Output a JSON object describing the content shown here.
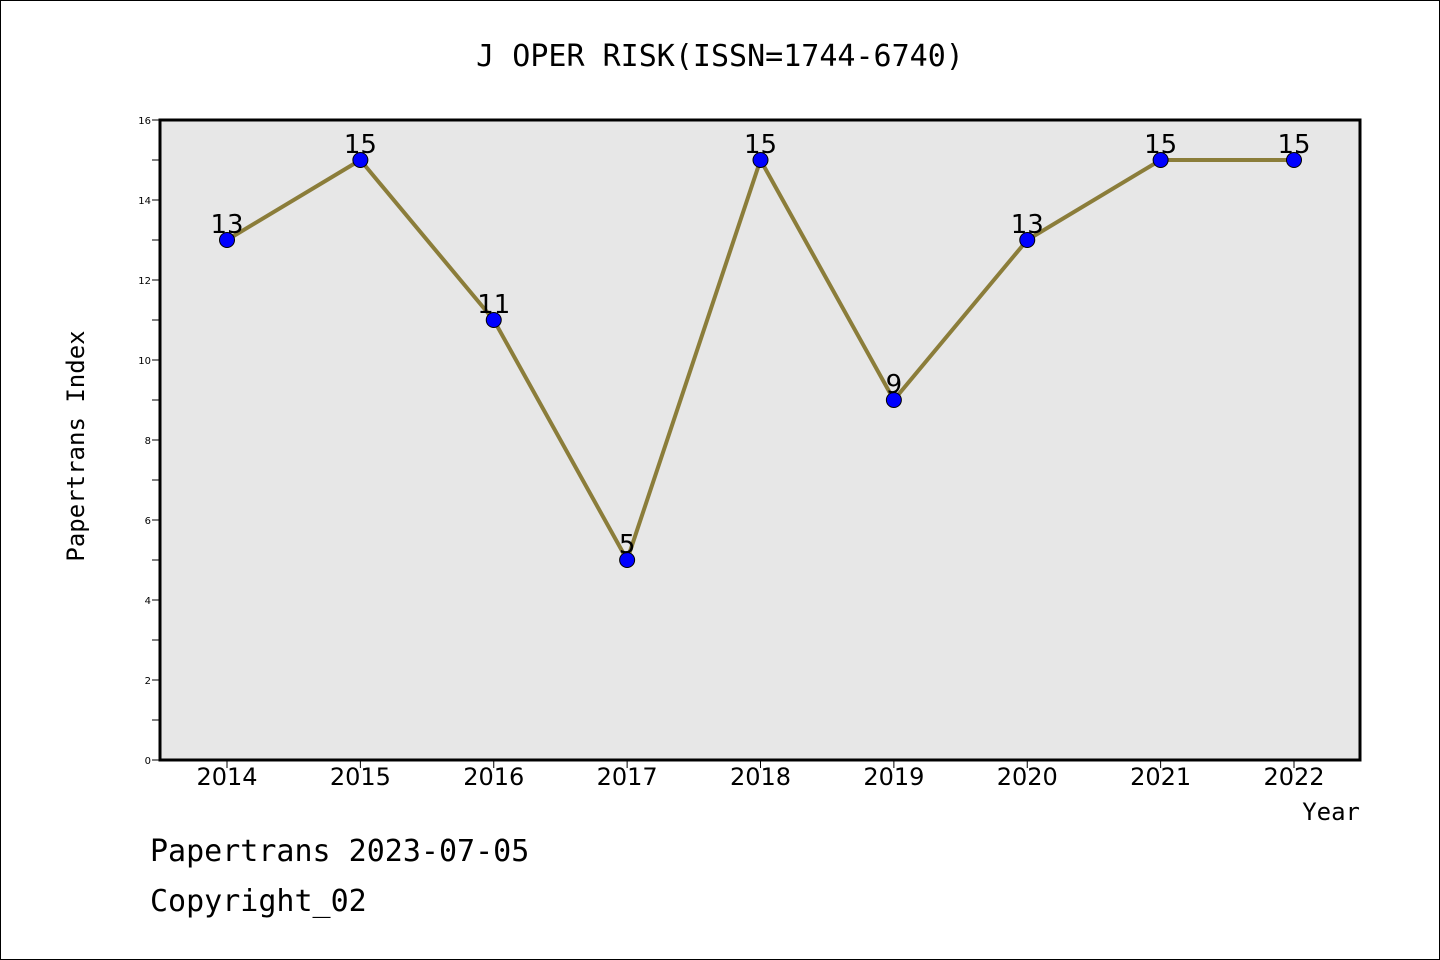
{
  "chart_data": {
    "type": "line",
    "title": "J OPER RISK(ISSN=1744-6740)",
    "xlabel": "Year",
    "ylabel": "Papertrans Index",
    "x": [
      "2014",
      "2015",
      "2016",
      "2017",
      "2018",
      "2019",
      "2020",
      "2021",
      "2022"
    ],
    "series": [
      {
        "values": [
          13,
          15,
          11,
          5,
          15,
          9,
          13,
          15,
          15
        ]
      }
    ],
    "data_labels": [
      "13",
      "15",
      "11",
      "5",
      "15",
      "9",
      "13",
      "15",
      "15"
    ],
    "ylim": [
      0,
      16
    ],
    "yticks": [
      "0",
      "2",
      "4",
      "6",
      "8",
      "10",
      "12",
      "14",
      "16"
    ],
    "grid": false,
    "legend": "none",
    "colors": {
      "line": "#8b7d3a",
      "marker": "#0000ff",
      "plot_background": "#e7e7e7"
    }
  },
  "footer": {
    "date_line": "Papertrans 2023-07-05",
    "copyright": "Copyright_02"
  }
}
